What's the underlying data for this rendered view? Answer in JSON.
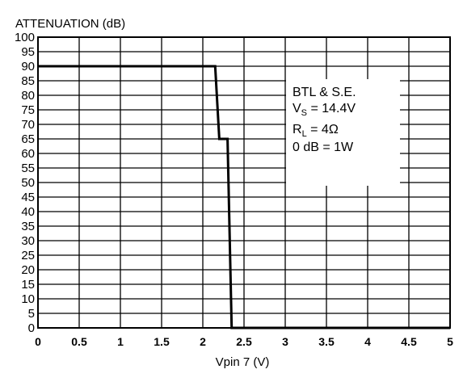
{
  "chart_data": {
    "type": "line",
    "ylabel": "ATTENUATION (dB)",
    "xlabel": "Vpin 7 (V)",
    "xlim": [
      0,
      5
    ],
    "ylim": [
      0,
      100
    ],
    "x_ticks": [
      0,
      0.5,
      1,
      1.5,
      2,
      2.5,
      3,
      3.5,
      4,
      4.5,
      5
    ],
    "x_tick_labels": [
      "0",
      "0.5",
      "1",
      "1.5",
      "2",
      "2.5",
      "3",
      "3.5",
      "4",
      "4.5",
      "5"
    ],
    "y_ticks": [
      0,
      5,
      10,
      15,
      20,
      25,
      30,
      35,
      40,
      45,
      50,
      55,
      60,
      65,
      70,
      75,
      80,
      85,
      90,
      95,
      100
    ],
    "y_tick_labels": [
      "0",
      "5",
      "10",
      "15",
      "20",
      "25",
      "30",
      "35",
      "40",
      "45",
      "50",
      "55",
      "60",
      "65",
      "70",
      "75",
      "80",
      "85",
      "90",
      "95",
      "100"
    ],
    "grid": true,
    "series": [
      {
        "x": [
          0,
          2.15,
          2.2,
          2.3,
          2.35,
          5
        ],
        "y": [
          90,
          90,
          65,
          65,
          0,
          0
        ]
      }
    ],
    "annotation": {
      "line1": "BTL & S.E.",
      "line2_main": "V",
      "line2_sub": "S",
      "line2_rest": " = 14.4V",
      "line3_main": "R",
      "line3_sub": "L",
      "line3_rest": " = 4Ω",
      "line4": "0 dB = 1W"
    }
  }
}
